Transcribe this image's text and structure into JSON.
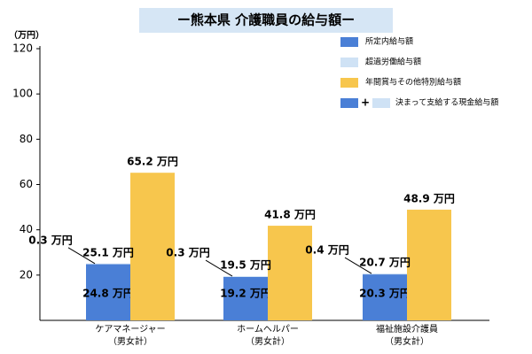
{
  "chart_data": {
    "type": "bar",
    "title": "ー熊本県 介護職員の給与額ー",
    "y_unit": "（万円）",
    "categories": [
      "ケアマネージャー",
      "ホームヘルパー",
      "福祉施設介護員"
    ],
    "category_sublabels": [
      "（男女計）",
      "（男女計）",
      "（男女計）"
    ],
    "series": [
      {
        "name": "所定内給与額",
        "color": "#4a7fd6",
        "values": [
          24.8,
          19.2,
          20.3
        ],
        "value_labels": [
          "24.8 万円",
          "19.2 万円",
          "20.3 万円"
        ]
      },
      {
        "name": "超過労働給与額",
        "color": "#cfe2f5",
        "values": [
          0.3,
          0.3,
          0.4
        ],
        "value_labels": [
          "0.3 万円",
          "0.3 万円",
          "0.4 万円"
        ]
      },
      {
        "name": "年間賞与その他特別給与額",
        "color": "#f7c64d",
        "values": [
          65.2,
          41.8,
          48.9
        ],
        "value_labels": [
          "65.2 万円",
          "41.8 万円",
          "48.9 万円"
        ]
      }
    ],
    "totals": {
      "values": [
        25.1,
        19.5,
        20.7
      ],
      "value_labels": [
        "25.1 万円",
        "19.5 万円",
        "20.7 万円"
      ]
    },
    "legend_combined": {
      "symbol": "+",
      "name": "決まって支給する現金給与額"
    },
    "ylim": [
      0,
      120
    ],
    "yticks": [
      20,
      40,
      60,
      80,
      100,
      120
    ],
    "grid": false
  }
}
